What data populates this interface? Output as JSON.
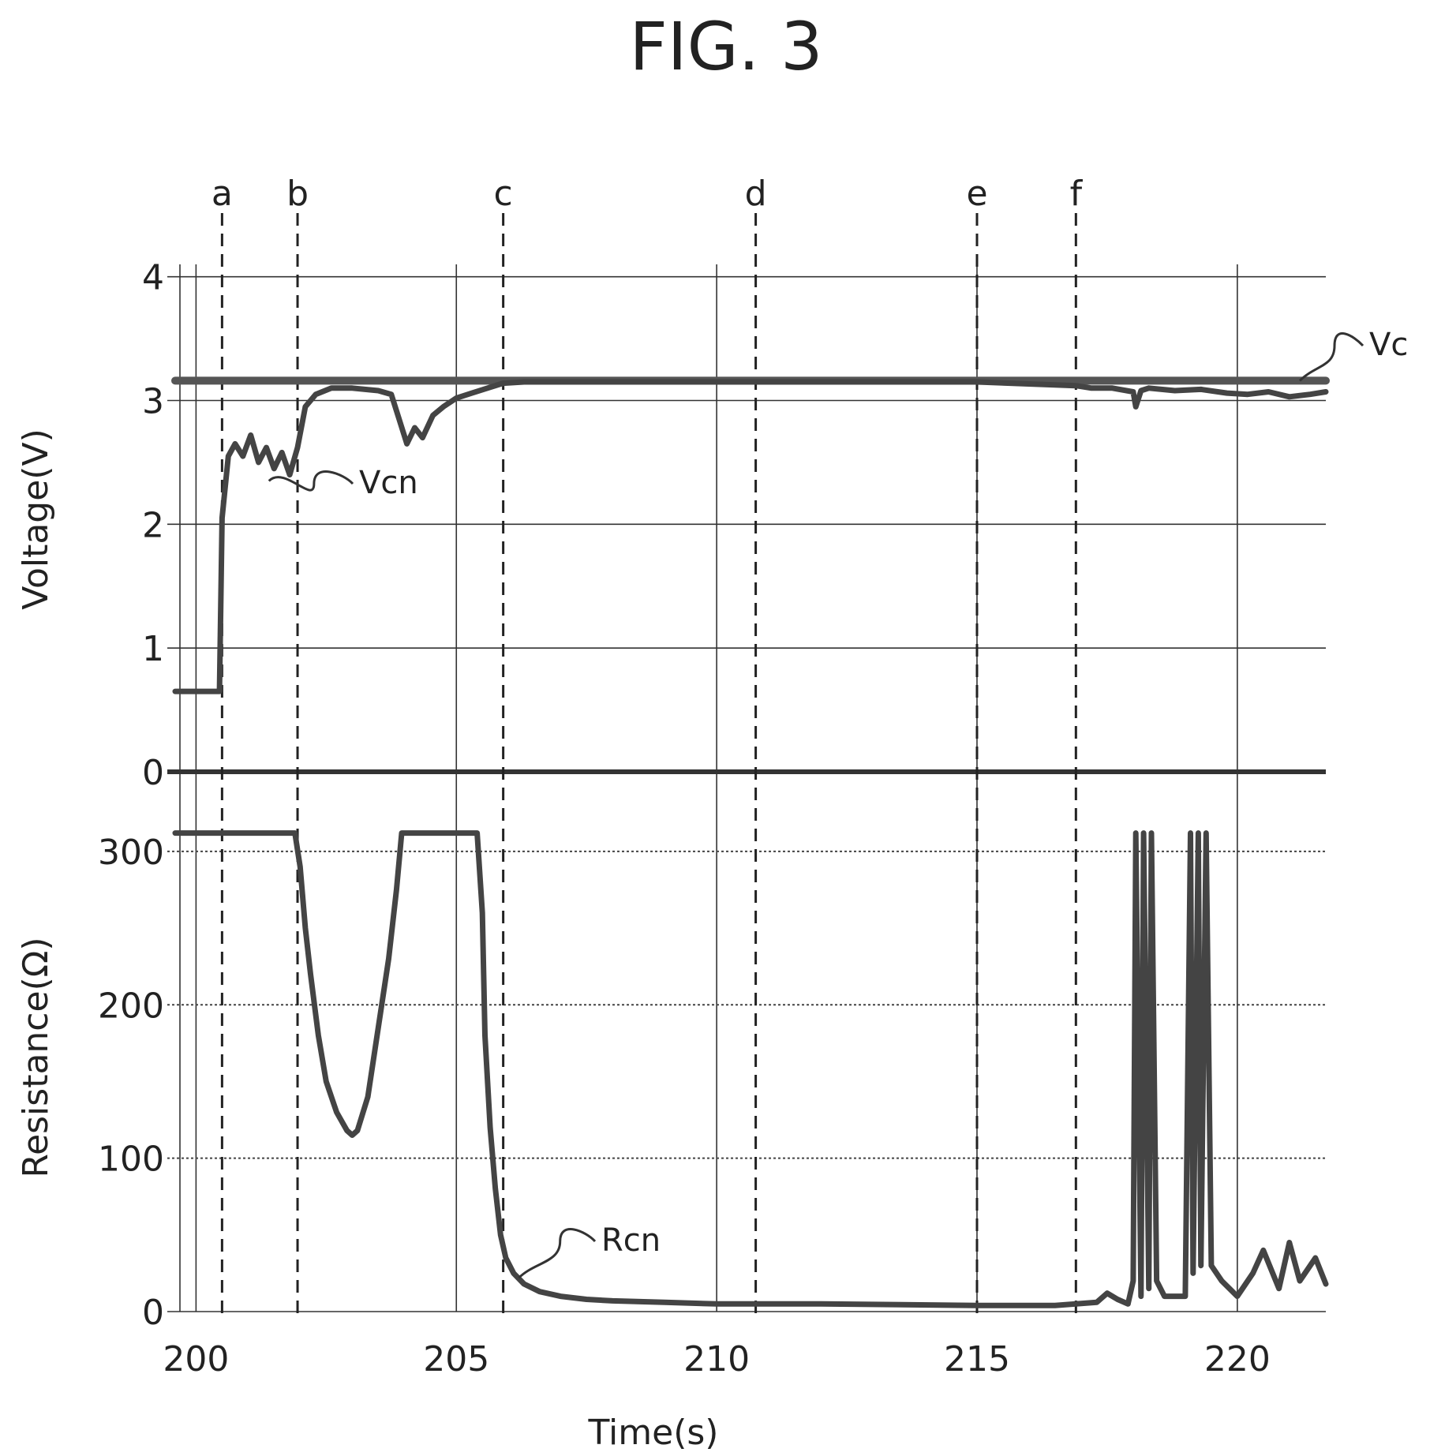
{
  "figure": {
    "title": "FIG. 3"
  },
  "chart_data": {
    "type": "line",
    "title": "FIG. 3",
    "xlabel": "Time(s)",
    "xlim": [
      199.6,
      221.7
    ],
    "xticks": [
      200,
      205,
      210,
      215,
      220
    ],
    "grid": true,
    "markers": [
      {
        "label": "a",
        "x": 200.5
      },
      {
        "label": "b",
        "x": 201.95
      },
      {
        "label": "c",
        "x": 205.9
      },
      {
        "label": "d",
        "x": 210.75
      },
      {
        "label": "e",
        "x": 215.0
      },
      {
        "label": "f",
        "x": 216.9
      }
    ],
    "panels": [
      {
        "ylabel": "Voltage(V)",
        "ylim": [
          0,
          4.1
        ],
        "yticks": [
          0,
          1,
          2,
          3,
          4
        ],
        "series": [
          {
            "name": "Vc",
            "x": [
              199.6,
              221.7
            ],
            "y": [
              3.16,
              3.16
            ]
          },
          {
            "name": "Vcn",
            "x": [
              199.6,
              200.45,
              200.5,
              200.62,
              200.75,
              200.9,
              201.05,
              201.2,
              201.35,
              201.5,
              201.65,
              201.8,
              201.95,
              202.1,
              202.3,
              202.6,
              203.0,
              203.5,
              203.75,
              203.9,
              204.05,
              204.2,
              204.35,
              204.55,
              204.75,
              205.0,
              205.3,
              205.6,
              205.9,
              206.3,
              210,
              215,
              216.9,
              217.2,
              217.6,
              218.0,
              218.05,
              218.15,
              218.3,
              218.8,
              219.3,
              219.8,
              220.2,
              220.6,
              221.0,
              221.4,
              221.7
            ],
            "y": [
              0.65,
              0.65,
              2.05,
              2.55,
              2.65,
              2.55,
              2.72,
              2.5,
              2.62,
              2.45,
              2.58,
              2.4,
              2.62,
              2.95,
              3.05,
              3.1,
              3.1,
              3.08,
              3.05,
              2.85,
              2.65,
              2.78,
              2.7,
              2.88,
              2.95,
              3.02,
              3.06,
              3.1,
              3.14,
              3.15,
              3.15,
              3.15,
              3.12,
              3.1,
              3.1,
              3.07,
              2.95,
              3.08,
              3.1,
              3.08,
              3.09,
              3.06,
              3.05,
              3.07,
              3.03,
              3.05,
              3.07
            ]
          }
        ],
        "annotations": [
          {
            "label": "Vc",
            "target": "Vc"
          },
          {
            "label": "Vcn",
            "target": "Vcn"
          }
        ]
      },
      {
        "ylabel": "Resistance(Ω)",
        "ylim": [
          0,
          320
        ],
        "yticks": [
          0,
          100,
          200,
          300
        ],
        "series": [
          {
            "name": "Rcn",
            "x": [
              199.6,
              201.9,
              202.0,
              202.1,
              202.2,
              202.35,
              202.5,
              202.7,
              202.9,
              203.0,
              203.1,
              203.3,
              203.5,
              203.7,
              203.85,
              203.95,
              205.4,
              205.5,
              205.55,
              205.65,
              205.75,
              205.85,
              205.95,
              206.1,
              206.3,
              206.6,
              207.0,
              207.5,
              208.0,
              209.0,
              210.0,
              212.0,
              215.0,
              216.5,
              217.3,
              217.5,
              217.7,
              217.9,
              218.0,
              218.05,
              218.15,
              218.2,
              218.3,
              218.35,
              218.45,
              218.6,
              219.0,
              219.1,
              219.15,
              219.25,
              219.3,
              219.4,
              219.5,
              219.7,
              220.0,
              220.3,
              220.5,
              220.8,
              221.0,
              221.2,
              221.5,
              221.7
            ],
            "y": [
              312,
              312,
              290,
              250,
              220,
              180,
              150,
              130,
              118,
              115,
              118,
              140,
              185,
              230,
              275,
              312,
              312,
              260,
              180,
              120,
              80,
              50,
              35,
              25,
              18,
              13,
              10,
              8,
              7,
              6,
              5,
              5,
              4,
              4,
              6,
              12,
              8,
              5,
              20,
              312,
              10,
              312,
              15,
              312,
              20,
              10,
              10,
              312,
              25,
              312,
              30,
              312,
              30,
              20,
              10,
              25,
              40,
              15,
              45,
              20,
              35,
              18
            ]
          }
        ],
        "annotations": [
          {
            "label": "Rcn",
            "target": "Rcn"
          }
        ]
      }
    ]
  }
}
